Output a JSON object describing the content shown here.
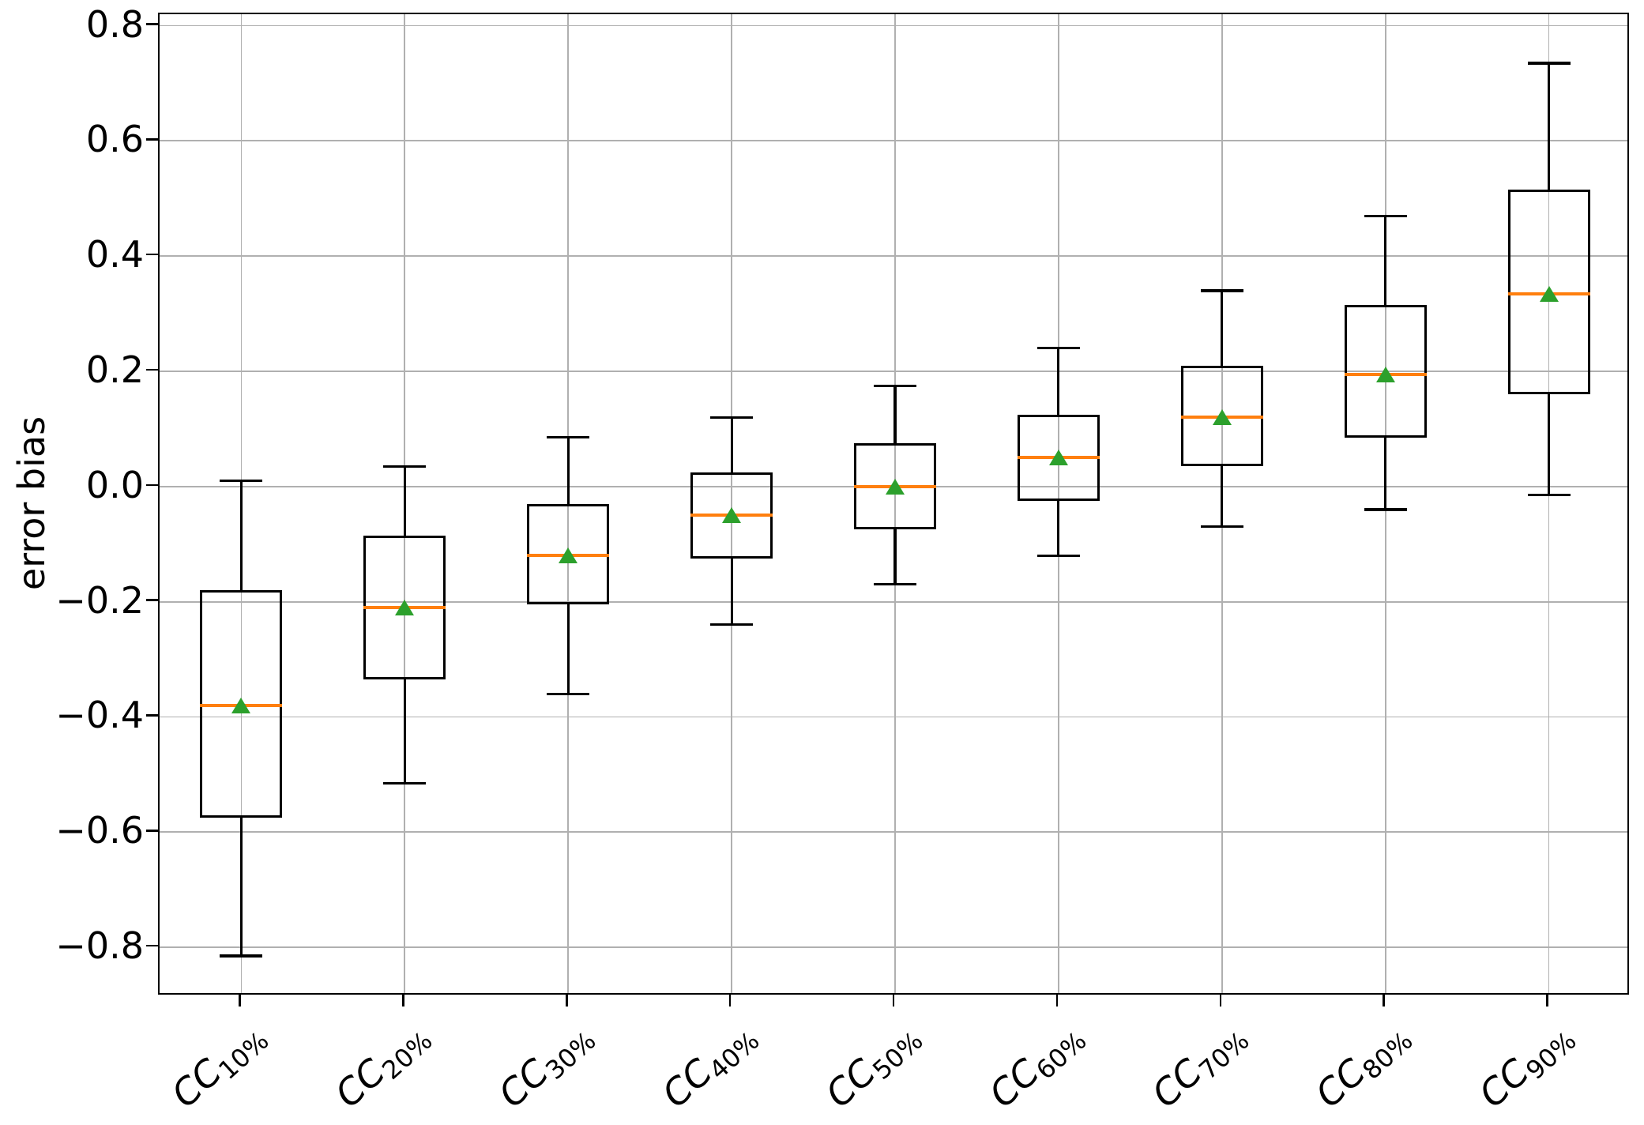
{
  "chart_data": {
    "type": "boxplot",
    "title": "",
    "xlabel": "",
    "ylabel": "error bias",
    "ylim": [
      -0.885,
      0.82
    ],
    "grid": true,
    "legend": "none",
    "colors": {
      "box_line": "#000000",
      "median_line": "#ff7f0e",
      "mean_marker": "#2ca02c",
      "gridline": "#b0b0b0",
      "background": "#ffffff"
    },
    "yticks": [
      {
        "v": 0.8,
        "label": "0.8"
      },
      {
        "v": 0.6,
        "label": "0.6"
      },
      {
        "v": 0.4,
        "label": "0.4"
      },
      {
        "v": 0.2,
        "label": "0.2"
      },
      {
        "v": 0.0,
        "label": "0.0"
      },
      {
        "v": -0.2,
        "label": "−0.2"
      },
      {
        "v": -0.4,
        "label": "−0.4"
      },
      {
        "v": -0.6,
        "label": "−0.6"
      },
      {
        "v": -0.8,
        "label": "−0.8"
      }
    ],
    "categories": [
      {
        "base": "CC",
        "subscript": "10%"
      },
      {
        "base": "CC",
        "subscript": "20%"
      },
      {
        "base": "CC",
        "subscript": "30%"
      },
      {
        "base": "CC",
        "subscript": "40%"
      },
      {
        "base": "CC",
        "subscript": "50%"
      },
      {
        "base": "CC",
        "subscript": "60%"
      },
      {
        "base": "CC",
        "subscript": "70%"
      },
      {
        "base": "CC",
        "subscript": "80%"
      },
      {
        "base": "CC",
        "subscript": "90%"
      }
    ],
    "series": [
      {
        "label": "CC10%",
        "whisker_low": -0.815,
        "q1": -0.575,
        "median": -0.38,
        "mean": -0.38,
        "q3": -0.18,
        "whisker_high": 0.01
      },
      {
        "label": "CC20%",
        "whisker_low": -0.515,
        "q1": -0.335,
        "median": -0.21,
        "mean": -0.21,
        "q3": -0.085,
        "whisker_high": 0.035
      },
      {
        "label": "CC30%",
        "whisker_low": -0.36,
        "q1": -0.205,
        "median": -0.12,
        "mean": -0.12,
        "q3": -0.03,
        "whisker_high": 0.085
      },
      {
        "label": "CC40%",
        "whisker_low": -0.24,
        "q1": -0.125,
        "median": -0.05,
        "mean": -0.05,
        "q3": 0.025,
        "whisker_high": 0.12
      },
      {
        "label": "CC50%",
        "whisker_low": -0.17,
        "q1": -0.075,
        "median": 0.0,
        "mean": 0.0,
        "q3": 0.075,
        "whisker_high": 0.175
      },
      {
        "label": "CC60%",
        "whisker_low": -0.12,
        "q1": -0.025,
        "median": 0.05,
        "mean": 0.05,
        "q3": 0.125,
        "whisker_high": 0.24
      },
      {
        "label": "CC70%",
        "whisker_low": -0.07,
        "q1": 0.035,
        "median": 0.12,
        "mean": 0.12,
        "q3": 0.21,
        "whisker_high": 0.34
      },
      {
        "label": "CC80%",
        "whisker_low": -0.04,
        "q1": 0.085,
        "median": 0.195,
        "mean": 0.195,
        "q3": 0.315,
        "whisker_high": 0.47
      },
      {
        "label": "CC90%",
        "whisker_low": -0.015,
        "q1": 0.16,
        "median": 0.335,
        "mean": 0.335,
        "q3": 0.515,
        "whisker_high": 0.735
      }
    ]
  }
}
